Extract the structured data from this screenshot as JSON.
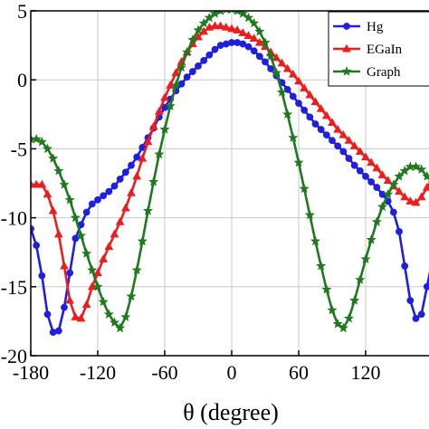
{
  "chart_data": {
    "type": "line",
    "title": "",
    "xlabel": "θ (degree)",
    "ylabel": "",
    "xlim": [
      -180,
      180
    ],
    "ylim": [
      -20,
      5
    ],
    "grid": true,
    "legend_position": "top-right",
    "x_tick_labels": [
      "-180",
      "-120",
      "-60",
      "0",
      "60",
      "120"
    ],
    "y_tick_labels": [
      "5",
      "0",
      "-5",
      "-10",
      "-15",
      "-20"
    ],
    "series": [
      {
        "name": "Hg",
        "color": "#1f1fe0",
        "marker": "circle",
        "points": [
          [
            -180,
            -10.8
          ],
          [
            -175,
            -12.0
          ],
          [
            -170,
            -14.2
          ],
          [
            -165,
            -17.0
          ],
          [
            -160,
            -18.3
          ],
          [
            -155,
            -18.2
          ],
          [
            -150,
            -16.5
          ],
          [
            -145,
            -14.0
          ],
          [
            -140,
            -11.5
          ],
          [
            -135,
            -10.5
          ],
          [
            -130,
            -9.6
          ],
          [
            -125,
            -9.0
          ],
          [
            -120,
            -8.7
          ],
          [
            -115,
            -8.4
          ],
          [
            -110,
            -8.1
          ],
          [
            -105,
            -7.7
          ],
          [
            -100,
            -7.2
          ],
          [
            -95,
            -6.7
          ],
          [
            -90,
            -6.2
          ],
          [
            -85,
            -5.6
          ],
          [
            -80,
            -4.9
          ],
          [
            -75,
            -4.2
          ],
          [
            -70,
            -3.5
          ],
          [
            -65,
            -2.7
          ],
          [
            -60,
            -2.0
          ],
          [
            -55,
            -1.4
          ],
          [
            -50,
            -0.8
          ],
          [
            -45,
            -0.3
          ],
          [
            -40,
            0.2
          ],
          [
            -35,
            0.6
          ],
          [
            -30,
            1.0
          ],
          [
            -25,
            1.4
          ],
          [
            -20,
            1.8
          ],
          [
            -15,
            2.2
          ],
          [
            -10,
            2.5
          ],
          [
            -5,
            2.6
          ],
          [
            0,
            2.7
          ],
          [
            5,
            2.7
          ],
          [
            10,
            2.6
          ],
          [
            15,
            2.4
          ],
          [
            20,
            2.1
          ],
          [
            25,
            1.7
          ],
          [
            30,
            1.3
          ],
          [
            35,
            0.8
          ],
          [
            40,
            0.3
          ],
          [
            45,
            -0.2
          ],
          [
            50,
            -0.7
          ],
          [
            55,
            -1.2
          ],
          [
            60,
            -1.7
          ],
          [
            65,
            -2.2
          ],
          [
            70,
            -2.7
          ],
          [
            75,
            -3.2
          ],
          [
            80,
            -3.6
          ],
          [
            85,
            -4.0
          ],
          [
            90,
            -4.4
          ],
          [
            95,
            -4.8
          ],
          [
            100,
            -5.2
          ],
          [
            105,
            -5.7
          ],
          [
            110,
            -6.2
          ],
          [
            115,
            -6.6
          ],
          [
            120,
            -7.0
          ],
          [
            125,
            -7.4
          ],
          [
            130,
            -7.8
          ],
          [
            135,
            -8.3
          ],
          [
            140,
            -8.8
          ],
          [
            145,
            -9.6
          ],
          [
            150,
            -11.0
          ],
          [
            155,
            -13.5
          ],
          [
            160,
            -16.0
          ],
          [
            165,
            -17.3
          ],
          [
            170,
            -17.0
          ],
          [
            175,
            -15.0
          ],
          [
            180,
            -13.0
          ]
        ]
      },
      {
        "name": "EGaIn",
        "color": "#ee1c1c",
        "marker": "triangle",
        "points": [
          [
            -180,
            -7.6
          ],
          [
            -175,
            -7.6
          ],
          [
            -170,
            -7.6
          ],
          [
            -165,
            -8.3
          ],
          [
            -160,
            -9.5
          ],
          [
            -155,
            -11.2
          ],
          [
            -150,
            -13.5
          ],
          [
            -145,
            -16.0
          ],
          [
            -140,
            -17.2
          ],
          [
            -135,
            -17.3
          ],
          [
            -130,
            -16.3
          ],
          [
            -125,
            -15.0
          ],
          [
            -120,
            -14.0
          ],
          [
            -115,
            -13.0
          ],
          [
            -110,
            -12.1
          ],
          [
            -105,
            -11.2
          ],
          [
            -100,
            -10.3
          ],
          [
            -95,
            -9.3
          ],
          [
            -90,
            -8.2
          ],
          [
            -85,
            -7.0
          ],
          [
            -80,
            -5.7
          ],
          [
            -75,
            -4.5
          ],
          [
            -70,
            -3.4
          ],
          [
            -65,
            -2.3
          ],
          [
            -60,
            -1.3
          ],
          [
            -55,
            -0.4
          ],
          [
            -50,
            0.5
          ],
          [
            -45,
            1.3
          ],
          [
            -40,
            2.0
          ],
          [
            -35,
            2.6
          ],
          [
            -30,
            3.1
          ],
          [
            -25,
            3.5
          ],
          [
            -20,
            3.8
          ],
          [
            -15,
            3.9
          ],
          [
            -10,
            3.9
          ],
          [
            -5,
            3.8
          ],
          [
            0,
            3.7
          ],
          [
            5,
            3.6
          ],
          [
            10,
            3.4
          ],
          [
            15,
            3.2
          ],
          [
            20,
            3.0
          ],
          [
            25,
            2.7
          ],
          [
            30,
            2.4
          ],
          [
            35,
            2.0
          ],
          [
            40,
            1.6
          ],
          [
            45,
            1.2
          ],
          [
            50,
            0.8
          ],
          [
            55,
            0.4
          ],
          [
            60,
            -0.1
          ],
          [
            65,
            -0.6
          ],
          [
            70,
            -1.1
          ],
          [
            75,
            -1.6
          ],
          [
            80,
            -2.1
          ],
          [
            85,
            -2.6
          ],
          [
            90,
            -3.1
          ],
          [
            95,
            -3.6
          ],
          [
            100,
            -4.0
          ],
          [
            105,
            -4.4
          ],
          [
            110,
            -4.8
          ],
          [
            115,
            -5.2
          ],
          [
            120,
            -5.6
          ],
          [
            125,
            -6.0
          ],
          [
            130,
            -6.4
          ],
          [
            135,
            -6.9
          ],
          [
            140,
            -7.3
          ],
          [
            145,
            -7.7
          ],
          [
            150,
            -8.1
          ],
          [
            155,
            -8.5
          ],
          [
            160,
            -8.8
          ],
          [
            165,
            -8.9
          ],
          [
            170,
            -8.5
          ],
          [
            175,
            -7.8
          ],
          [
            180,
            -7.2
          ]
        ]
      },
      {
        "name": "Graphene",
        "legend_label": "Graph",
        "color": "#1f7a1f",
        "marker": "star",
        "points": [
          [
            -180,
            -4.3
          ],
          [
            -175,
            -4.3
          ],
          [
            -170,
            -4.5
          ],
          [
            -165,
            -5.0
          ],
          [
            -160,
            -5.7
          ],
          [
            -155,
            -6.6
          ],
          [
            -150,
            -7.6
          ],
          [
            -145,
            -8.7
          ],
          [
            -140,
            -10.0
          ],
          [
            -135,
            -11.3
          ],
          [
            -130,
            -12.6
          ],
          [
            -125,
            -13.8
          ],
          [
            -120,
            -15.0
          ],
          [
            -115,
            -16.1
          ],
          [
            -110,
            -17.0
          ],
          [
            -105,
            -17.6
          ],
          [
            -100,
            -18.0
          ],
          [
            -95,
            -17.2
          ],
          [
            -90,
            -15.7
          ],
          [
            -85,
            -13.8
          ],
          [
            -80,
            -11.7
          ],
          [
            -75,
            -9.5
          ],
          [
            -70,
            -7.4
          ],
          [
            -65,
            -5.4
          ],
          [
            -60,
            -3.6
          ],
          [
            -55,
            -1.9
          ],
          [
            -50,
            -0.4
          ],
          [
            -45,
            0.9
          ],
          [
            -40,
            2.0
          ],
          [
            -35,
            2.9
          ],
          [
            -30,
            3.6
          ],
          [
            -25,
            4.1
          ],
          [
            -20,
            4.5
          ],
          [
            -15,
            4.8
          ],
          [
            -10,
            5.0
          ],
          [
            -5,
            5.1
          ],
          [
            0,
            5.1
          ],
          [
            5,
            5.0
          ],
          [
            10,
            4.8
          ],
          [
            15,
            4.5
          ],
          [
            20,
            4.1
          ],
          [
            25,
            3.5
          ],
          [
            30,
            2.7
          ],
          [
            35,
            1.7
          ],
          [
            40,
            0.5
          ],
          [
            45,
            -0.9
          ],
          [
            50,
            -2.5
          ],
          [
            55,
            -4.2
          ],
          [
            60,
            -6.0
          ],
          [
            65,
            -7.9
          ],
          [
            70,
            -9.8
          ],
          [
            75,
            -11.7
          ],
          [
            80,
            -13.5
          ],
          [
            85,
            -15.2
          ],
          [
            90,
            -16.7
          ],
          [
            95,
            -17.7
          ],
          [
            100,
            -18.0
          ],
          [
            105,
            -17.3
          ],
          [
            110,
            -16.0
          ],
          [
            115,
            -14.5
          ],
          [
            120,
            -13.0
          ],
          [
            125,
            -11.6
          ],
          [
            130,
            -10.3
          ],
          [
            135,
            -9.2
          ],
          [
            140,
            -8.3
          ],
          [
            145,
            -7.6
          ],
          [
            150,
            -7.0
          ],
          [
            155,
            -6.6
          ],
          [
            160,
            -6.3
          ],
          [
            165,
            -6.3
          ],
          [
            170,
            -6.5
          ],
          [
            175,
            -7.0
          ],
          [
            180,
            -7.5
          ]
        ]
      }
    ]
  }
}
